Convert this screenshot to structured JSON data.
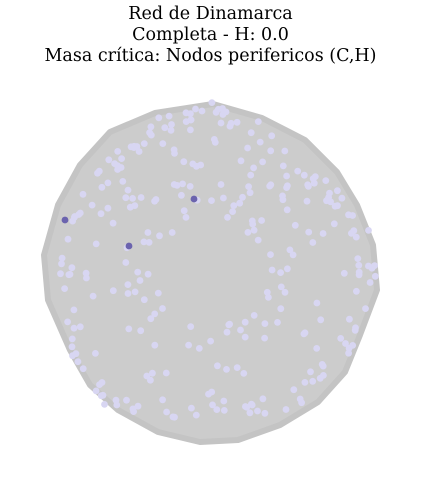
{
  "title": {
    "line1": "Red de Dinamarca",
    "line2": "Completa - H: 0.0",
    "line3": "Masa crítica: Nodos perifericos (C,H)"
  },
  "colors": {
    "background": "#ffffff",
    "edge": "#c8c8c8",
    "edge_mass": "#cccccc",
    "peripheral_node": "#d8d6f2",
    "highlighted_node": "#6b63ae"
  },
  "network": {
    "highlighted_node_count": 3
  }
}
